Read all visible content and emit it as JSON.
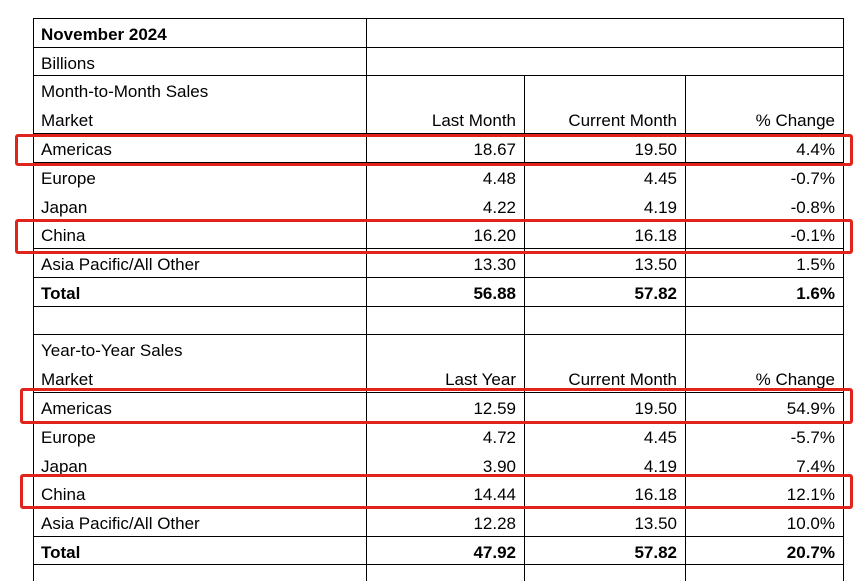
{
  "title": "November 2024",
  "units": "Billions",
  "highlight_color": "#e0241b",
  "sections": [
    {
      "caption": "Month-to-Month Sales",
      "headers": [
        "Market",
        "Last Month",
        "Current Month",
        "% Change"
      ],
      "rows": [
        {
          "market": "Americas",
          "v1": "18.67",
          "v2": "19.50",
          "pct": "4.4%",
          "highlighted": true
        },
        {
          "market": "Europe",
          "v1": "4.48",
          "v2": "4.45",
          "pct": "-0.7%",
          "highlighted": false
        },
        {
          "market": "Japan",
          "v1": "4.22",
          "v2": "4.19",
          "pct": "-0.8%",
          "highlighted": false
        },
        {
          "market": "China",
          "v1": "16.20",
          "v2": "16.18",
          "pct": "-0.1%",
          "highlighted": true
        },
        {
          "market": "Asia Pacific/All Other",
          "v1": "13.30",
          "v2": "13.50",
          "pct": "1.5%",
          "highlighted": false
        }
      ],
      "total": {
        "market": "Total",
        "v1": "56.88",
        "v2": "57.82",
        "pct": "1.6%"
      }
    },
    {
      "caption": "Year-to-Year Sales",
      "headers": [
        "Market",
        "Last Year",
        "Current Month",
        "% Change"
      ],
      "rows": [
        {
          "market": "Americas",
          "v1": "12.59",
          "v2": "19.50",
          "pct": "54.9%",
          "highlighted": true
        },
        {
          "market": "Europe",
          "v1": "4.72",
          "v2": "4.45",
          "pct": "-5.7%",
          "highlighted": false
        },
        {
          "market": "Japan",
          "v1": "3.90",
          "v2": "4.19",
          "pct": "7.4%",
          "highlighted": false
        },
        {
          "market": "China",
          "v1": "14.44",
          "v2": "16.18",
          "pct": "12.1%",
          "highlighted": true
        },
        {
          "market": "Asia Pacific/All Other",
          "v1": "12.28",
          "v2": "13.50",
          "pct": "10.0%",
          "highlighted": false
        }
      ],
      "total": {
        "market": "Total",
        "v1": "47.92",
        "v2": "57.82",
        "pct": "20.7%"
      }
    }
  ]
}
